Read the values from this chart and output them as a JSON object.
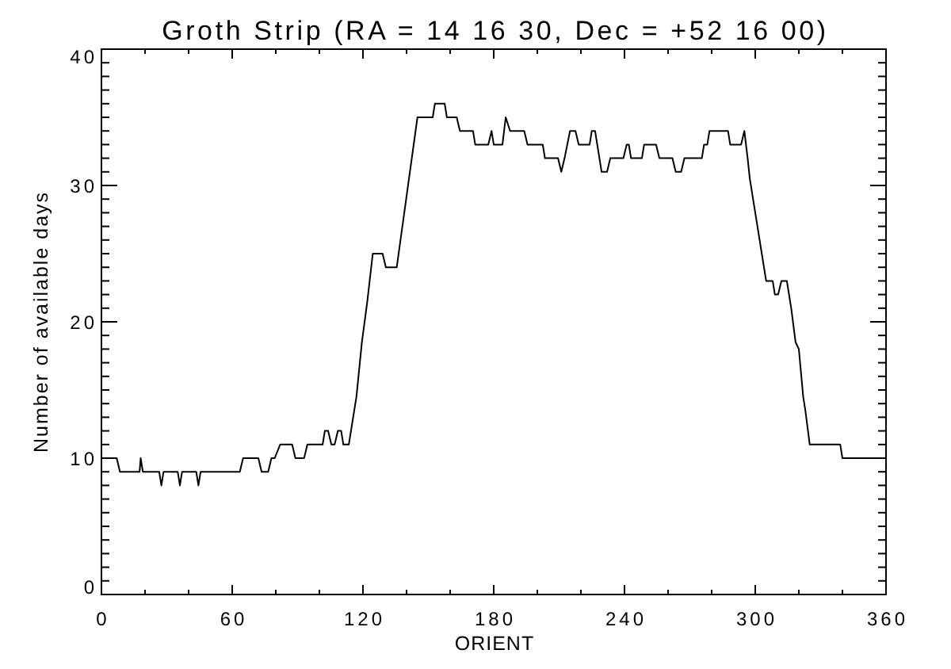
{
  "chart_data": {
    "type": "line",
    "title": "Groth Strip (RA = 14 16 30, Dec = +52 16 00)",
    "xlabel": "ORIENT",
    "ylabel": "Number of available days",
    "x": [
      0,
      7,
      8.5,
      17.5,
      18,
      19,
      26.5,
      27.5,
      28.5,
      35,
      36,
      37,
      43.5,
      44.5,
      45.5,
      63.5,
      65,
      72,
      73.5,
      76.5,
      78,
      79.5,
      82,
      87.5,
      89,
      93,
      94.5,
      101.5,
      102.5,
      104,
      105.5,
      107,
      108.5,
      110,
      111,
      113.5,
      114.5,
      117,
      119.5,
      122,
      124.5,
      129,
      130.5,
      135.5,
      145,
      152,
      153,
      157.5,
      158.5,
      163,
      164.5,
      170.5,
      171.5,
      177.5,
      179,
      180,
      184,
      185.5,
      187.5,
      194,
      195.5,
      202.5,
      203.5,
      209.5,
      211,
      212.5,
      215,
      217.5,
      219,
      224,
      225,
      226.5,
      227.5,
      228.5,
      229.5,
      232,
      233.5,
      239.5,
      241,
      242,
      243,
      248,
      249,
      254.5,
      256,
      262,
      263.5,
      266,
      267.5,
      275.5,
      276.5,
      278,
      279,
      287.5,
      288.5,
      293.5,
      295,
      296.5,
      297.5,
      300,
      302.5,
      305,
      308,
      309,
      310.5,
      312,
      314.5,
      316.5,
      318.5,
      320,
      322,
      323,
      325,
      339,
      340,
      360
    ],
    "values": [
      10,
      10,
      9,
      9,
      10,
      9,
      9,
      8,
      9,
      9,
      8,
      9,
      9,
      8,
      9,
      9,
      10,
      10,
      9,
      9,
      10,
      10,
      11,
      11,
      10,
      10,
      11,
      11,
      12,
      12,
      11,
      11,
      12,
      12,
      11,
      11,
      12,
      14.5,
      18.5,
      21.5,
      25,
      25,
      24,
      24,
      35,
      35,
      36,
      36,
      35,
      35,
      34,
      34,
      33,
      33,
      34,
      33,
      33,
      35,
      34,
      34,
      33,
      33,
      32,
      32,
      31,
      32,
      34,
      34,
      33,
      33,
      34,
      34,
      33,
      32,
      31,
      31,
      32,
      32,
      33,
      33,
      32,
      32,
      33,
      33,
      32,
      32,
      31,
      31,
      32,
      32,
      33,
      33,
      34,
      34,
      33,
      33,
      34,
      32,
      30.5,
      28,
      25.5,
      23,
      23,
      22,
      22,
      23,
      23,
      21,
      18.5,
      18,
      14.5,
      13.5,
      11,
      11,
      10,
      10
    ],
    "color": "#000000",
    "line_style": "solid",
    "xlim": [
      0,
      360
    ],
    "ylim": [
      0,
      40
    ],
    "xticks": [
      0,
      {
        "value": 20,
        "label": null
      },
      {
        "value": 40,
        "label": null
      },
      60,
      {
        "value": 80,
        "label": null
      },
      {
        "value": 100,
        "label": null
      },
      120,
      {
        "value": 140,
        "label": null
      },
      {
        "value": 160,
        "label": null
      },
      180,
      {
        "value": 200,
        "label": null
      },
      {
        "value": 220,
        "label": null
      },
      240,
      {
        "value": 260,
        "label": null
      },
      {
        "value": 280,
        "label": null
      },
      300,
      {
        "value": 320,
        "label": null
      },
      {
        "value": 340,
        "label": null
      },
      360
    ],
    "yticks": [
      0,
      {
        "value": 1,
        "label": null
      },
      {
        "value": 2,
        "label": null
      },
      {
        "value": 3,
        "label": null
      },
      {
        "value": 4,
        "label": null
      },
      {
        "value": 5,
        "label": null
      },
      {
        "value": 6,
        "label": null
      },
      {
        "value": 7,
        "label": null
      },
      {
        "value": 8,
        "label": null
      },
      {
        "value": 9,
        "label": null
      },
      10,
      {
        "value": 11,
        "label": null
      },
      {
        "value": 12,
        "label": null
      },
      {
        "value": 13,
        "label": null
      },
      {
        "value": 14,
        "label": null
      },
      {
        "value": 15,
        "label": null
      },
      {
        "value": 16,
        "label": null
      },
      {
        "value": 17,
        "label": null
      },
      {
        "value": 18,
        "label": null
      },
      {
        "value": 19,
        "label": null
      },
      20,
      {
        "value": 21,
        "label": null
      },
      {
        "value": 22,
        "label": null
      },
      {
        "value": 23,
        "label": null
      },
      {
        "value": 24,
        "label": null
      },
      {
        "value": 25,
        "label": null
      },
      {
        "value": 26,
        "label": null
      },
      {
        "value": 27,
        "label": null
      },
      {
        "value": 28,
        "label": null
      },
      {
        "value": 29,
        "label": null
      },
      30,
      {
        "value": 31,
        "label": null
      },
      {
        "value": 32,
        "label": null
      },
      {
        "value": 33,
        "label": null
      },
      {
        "value": 34,
        "label": null
      },
      {
        "value": 35,
        "label": null
      },
      {
        "value": 36,
        "label": null
      },
      {
        "value": 37,
        "label": null
      },
      {
        "value": 38,
        "label": null
      },
      {
        "value": 39,
        "label": null
      },
      40
    ]
  }
}
